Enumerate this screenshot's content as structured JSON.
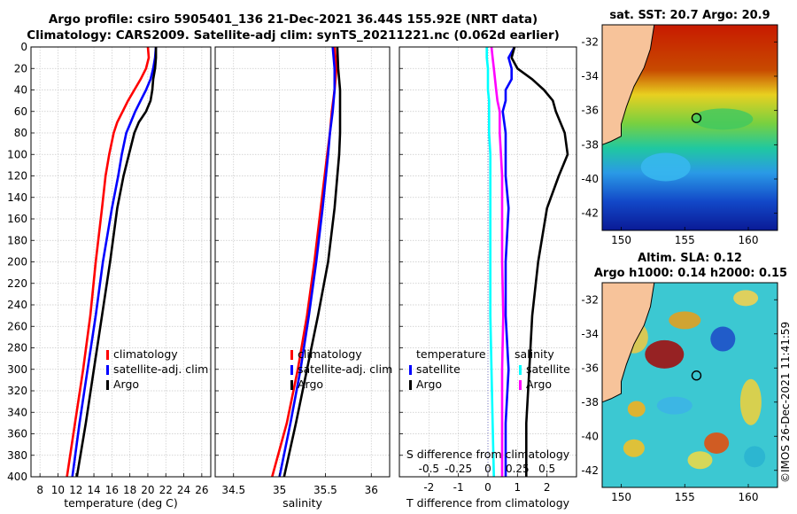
{
  "header": {
    "line1": "Argo profile: csiro 5905401_136 21-Dec-2021 36.44S 155.92E (NRT data)",
    "line2": "Climatology: CARS2009. Satellite-adj clim: synTS_20211221.nc (0.062d earlier)"
  },
  "colors": {
    "clim": "#ff0000",
    "sat": "#0000ff",
    "argo": "#000000",
    "sat_s": "#00ffff",
    "argo_s": "#ff00ff"
  },
  "chart_data": [
    {
      "type": "line",
      "id": "temperature",
      "xlabel": "temperature (deg C)",
      "xlim": [
        7,
        27
      ],
      "xticks": [
        8,
        10,
        12,
        14,
        16,
        18,
        20,
        22,
        24,
        26
      ],
      "ylim": [
        0,
        400
      ],
      "yticks": [
        0,
        20,
        40,
        60,
        80,
        100,
        120,
        140,
        160,
        180,
        200,
        220,
        240,
        260,
        280,
        300,
        320,
        340,
        360,
        380,
        400
      ],
      "legend": [
        "climatology",
        "satellite-adj. clim",
        "Argo"
      ],
      "legend_position": "bottom-right",
      "depth": [
        0,
        10,
        20,
        30,
        40,
        50,
        60,
        70,
        80,
        100,
        120,
        150,
        200,
        250,
        300,
        350,
        400
      ],
      "series": [
        {
          "name": "climatology",
          "color_key": "clim",
          "values": [
            20.0,
            20.1,
            19.8,
            19.2,
            18.5,
            17.8,
            17.2,
            16.6,
            16.2,
            15.7,
            15.3,
            14.9,
            14.2,
            13.6,
            12.8,
            11.9,
            11.0
          ]
        },
        {
          "name": "satellite-adj. clim",
          "color_key": "sat",
          "values": [
            20.9,
            20.8,
            20.6,
            20.3,
            19.8,
            19.2,
            18.6,
            18.1,
            17.6,
            17.1,
            16.7,
            16.0,
            15.0,
            14.2,
            13.3,
            12.4,
            11.6
          ]
        },
        {
          "name": "Argo",
          "color_key": "argo",
          "values": [
            20.9,
            20.9,
            20.8,
            20.6,
            20.5,
            20.3,
            19.8,
            19.0,
            18.5,
            17.9,
            17.3,
            16.6,
            15.8,
            14.9,
            14.0,
            13.1,
            12.1
          ]
        }
      ]
    },
    {
      "type": "line",
      "id": "salinity",
      "xlabel": "salinity",
      "xlim": [
        34.3,
        36.2
      ],
      "xticks": [
        34.5,
        35,
        35.5,
        36
      ],
      "ylim": [
        0,
        400
      ],
      "legend": [
        "climatology",
        "satellite-adj. clim",
        "Argo"
      ],
      "legend_position": "bottom-right",
      "depth": [
        0,
        20,
        40,
        60,
        80,
        100,
        150,
        200,
        250,
        300,
        350,
        400
      ],
      "series": [
        {
          "name": "climatology",
          "color_key": "clim",
          "values": [
            35.6,
            35.62,
            35.6,
            35.57,
            35.55,
            35.52,
            35.45,
            35.38,
            35.3,
            35.2,
            35.08,
            34.92
          ]
        },
        {
          "name": "satellite-adj. clim",
          "color_key": "sat",
          "values": [
            35.58,
            35.6,
            35.6,
            35.58,
            35.55,
            35.53,
            35.47,
            35.4,
            35.32,
            35.23,
            35.12,
            35.0
          ]
        },
        {
          "name": "Argo",
          "color_key": "argo",
          "values": [
            35.63,
            35.64,
            35.66,
            35.66,
            35.66,
            35.65,
            35.6,
            35.53,
            35.42,
            35.3,
            35.18,
            35.05
          ]
        }
      ]
    },
    {
      "type": "line",
      "id": "difference",
      "xlabel": "T difference from climatology",
      "xlim": [
        -3,
        3
      ],
      "xticks": [
        -2,
        -1,
        0,
        1,
        2
      ],
      "s_xlabel": "S difference from climatology",
      "s_xlim": [
        -0.75,
        0.75
      ],
      "s_xticks": [
        -0.5,
        -0.25,
        0,
        0.25,
        0.5
      ],
      "ylim": [
        0,
        400
      ],
      "legend_temperature": {
        "title": "temperature",
        "entries": [
          "satellite",
          "Argo"
        ]
      },
      "legend_salinity": {
        "title": "salinity",
        "entries": [
          "satellite",
          "Argo"
        ]
      },
      "depth": [
        0,
        10,
        20,
        30,
        40,
        50,
        60,
        80,
        100,
        120,
        150,
        200,
        250,
        300,
        350,
        400
      ],
      "t_series": [
        {
          "name": "satellite",
          "color_key": "sat",
          "values": [
            0.9,
            0.7,
            0.8,
            0.8,
            0.6,
            0.6,
            0.5,
            0.6,
            0.6,
            0.6,
            0.7,
            0.6,
            0.6,
            0.7,
            0.6,
            0.6
          ]
        },
        {
          "name": "Argo",
          "color_key": "argo",
          "values": [
            0.9,
            0.8,
            1.0,
            1.5,
            1.9,
            2.2,
            2.3,
            2.6,
            2.7,
            2.4,
            2.0,
            1.7,
            1.5,
            1.4,
            1.3,
            1.3
          ]
        }
      ],
      "s_series": [
        {
          "name": "satellite",
          "color_key": "sat_s",
          "values": [
            -0.01,
            -0.01,
            0.0,
            0.0,
            0.0,
            0.01,
            0.01,
            0.01,
            0.02,
            0.02,
            0.02,
            0.02,
            0.02,
            0.03,
            0.04,
            0.05
          ]
        },
        {
          "name": "Argo",
          "color_key": "argo_s",
          "values": [
            0.03,
            0.04,
            0.05,
            0.06,
            0.07,
            0.08,
            0.1,
            0.1,
            0.11,
            0.12,
            0.12,
            0.12,
            0.13,
            0.12,
            0.12,
            0.12
          ]
        }
      ]
    }
  ],
  "maps": {
    "sst": {
      "title": "sat. SST: 20.7 Argo: 20.9",
      "xticks": [
        "150",
        "155",
        "160"
      ],
      "yticks": [
        "-32",
        "-34",
        "-36",
        "-38",
        "-40",
        "-42"
      ]
    },
    "sla": {
      "title1": "Altim. SLA: 0.12",
      "title2": "Argo h1000: 0.14 h2000: 0.15",
      "xticks": [
        "150",
        "155",
        "160"
      ],
      "yticks": [
        "-32",
        "-34",
        "-36",
        "-38",
        "-40",
        "-42"
      ]
    }
  },
  "footer": {
    "stamp": "©IMOS 26-Dec-2021 11:41:59"
  }
}
